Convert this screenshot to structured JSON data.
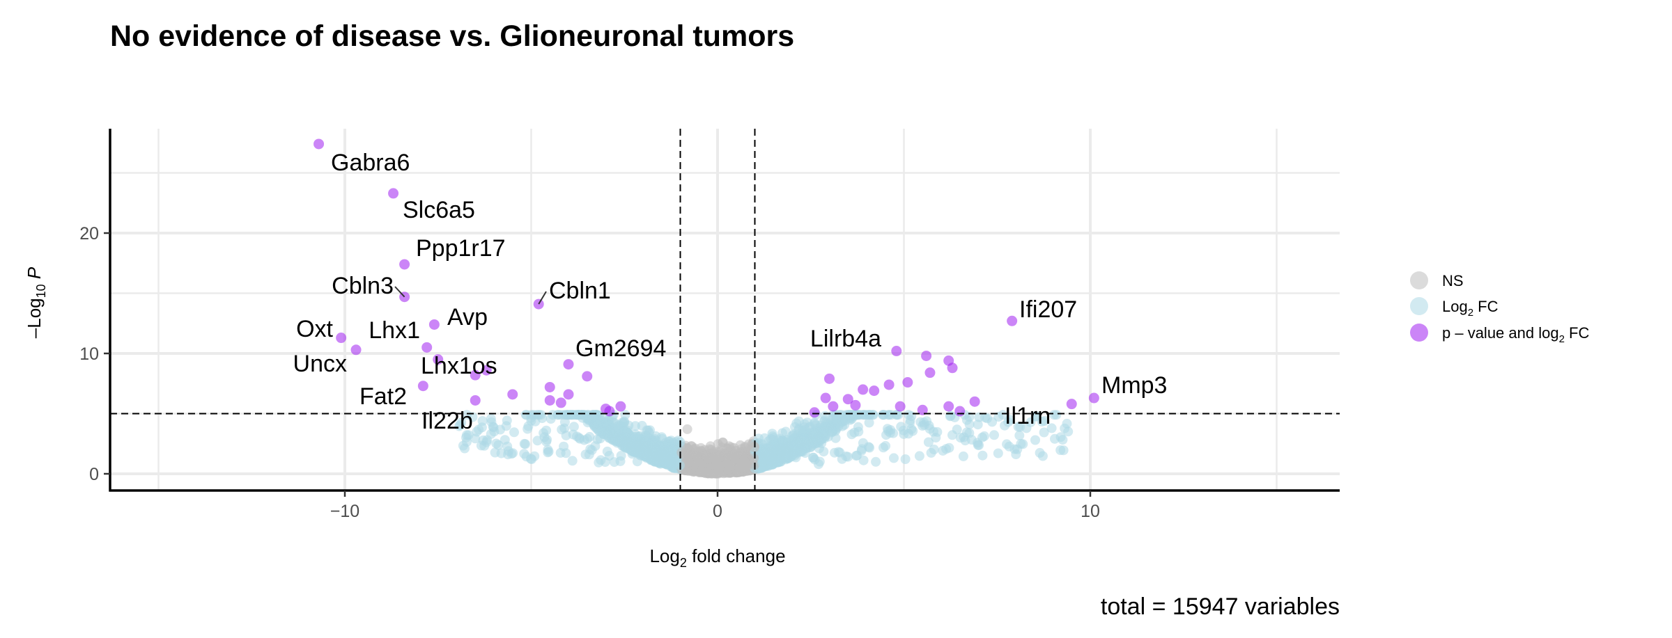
{
  "chart_data": {
    "type": "scatter",
    "title": "No evidence of disease vs. Glioneuronal tumors",
    "xlabel": "Log2 fold change",
    "ylabel": "-Log10 P",
    "caption": "total = 15947 variables",
    "xlim": [
      -15,
      15
    ],
    "ylim": [
      0,
      27.5
    ],
    "x_ticks": [
      -10,
      0,
      10
    ],
    "y_ticks": [
      0,
      10,
      20
    ],
    "fc_cutoff": 1,
    "p_cutoff_log10": 5,
    "grid": true,
    "legend_position": "right",
    "legend": [
      {
        "key": "ns",
        "label": "NS",
        "color": "#bdbdbd"
      },
      {
        "key": "fc",
        "label": "Log2 FC",
        "color": "#add8e6"
      },
      {
        "key": "both",
        "label": "p – value and log2 FC",
        "color": "#a020f0"
      }
    ],
    "series": [
      {
        "key": "both",
        "points": [
          {
            "x": -10.7,
            "y": 27.4
          },
          {
            "x": -8.7,
            "y": 23.3
          },
          {
            "x": -8.4,
            "y": 17.4
          },
          {
            "x": -8.4,
            "y": 14.7
          },
          {
            "x": -7.6,
            "y": 12.4
          },
          {
            "x": -10.1,
            "y": 11.3
          },
          {
            "x": -9.7,
            "y": 10.3
          },
          {
            "x": -7.8,
            "y": 10.5
          },
          {
            "x": -7.5,
            "y": 9.5
          },
          {
            "x": -6.5,
            "y": 8.2
          },
          {
            "x": -6.2,
            "y": 8.6
          },
          {
            "x": -7.9,
            "y": 7.3
          },
          {
            "x": -5.5,
            "y": 6.6
          },
          {
            "x": -6.5,
            "y": 6.1
          },
          {
            "x": -4.8,
            "y": 14.1
          },
          {
            "x": -4.0,
            "y": 9.1
          },
          {
            "x": -3.5,
            "y": 8.1
          },
          {
            "x": -4.5,
            "y": 7.2
          },
          {
            "x": -4.0,
            "y": 6.6
          },
          {
            "x": -4.5,
            "y": 6.1
          },
          {
            "x": -4.2,
            "y": 5.9
          },
          {
            "x": -3.0,
            "y": 5.4
          },
          {
            "x": -2.6,
            "y": 5.6
          },
          {
            "x": -2.9,
            "y": 5.2
          },
          {
            "x": 7.9,
            "y": 12.7
          },
          {
            "x": 10.1,
            "y": 6.3
          },
          {
            "x": 9.5,
            "y": 5.8
          },
          {
            "x": 4.8,
            "y": 10.2
          },
          {
            "x": 5.6,
            "y": 9.8
          },
          {
            "x": 6.2,
            "y": 9.4
          },
          {
            "x": 5.7,
            "y": 8.4
          },
          {
            "x": 6.3,
            "y": 8.8
          },
          {
            "x": 3.0,
            "y": 7.9
          },
          {
            "x": 3.9,
            "y": 7.0
          },
          {
            "x": 4.2,
            "y": 6.9
          },
          {
            "x": 4.6,
            "y": 7.4
          },
          {
            "x": 5.1,
            "y": 7.6
          },
          {
            "x": 2.9,
            "y": 6.3
          },
          {
            "x": 3.5,
            "y": 6.2
          },
          {
            "x": 2.6,
            "y": 5.1
          },
          {
            "x": 3.1,
            "y": 5.6
          },
          {
            "x": 3.7,
            "y": 5.7
          },
          {
            "x": 4.9,
            "y": 5.6
          },
          {
            "x": 5.5,
            "y": 5.3
          },
          {
            "x": 6.2,
            "y": 5.6
          },
          {
            "x": 6.9,
            "y": 6.0
          },
          {
            "x": 6.5,
            "y": 5.2
          }
        ]
      }
    ],
    "labels": [
      {
        "text": "Gabra6",
        "x": -10.7,
        "y": 27.4
      },
      {
        "text": "Slc6a5",
        "x": -8.7,
        "y": 23.3
      },
      {
        "text": "Ppp1r17",
        "x": -8.4,
        "y": 17.4
      },
      {
        "text": "Cbln3",
        "x": -8.4,
        "y": 14.7
      },
      {
        "text": "Cbln1",
        "x": -4.8,
        "y": 14.1
      },
      {
        "text": "Oxt",
        "x": -10.1,
        "y": 11.3
      },
      {
        "text": "Lhx1",
        "x": -9.7,
        "y": 10.3
      },
      {
        "text": "Avp",
        "x": -7.6,
        "y": 12.4
      },
      {
        "text": "Uncx",
        "x": -9.7,
        "y": 10.3
      },
      {
        "text": "Lhx1os",
        "x": -6.2,
        "y": 8.6
      },
      {
        "text": "Gm2694",
        "x": -4.0,
        "y": 9.1
      },
      {
        "text": "Fat2",
        "x": -7.9,
        "y": 7.3
      },
      {
        "text": "Il22b",
        "x": -6.5,
        "y": 6.1
      },
      {
        "text": "Lilrb4a",
        "x": 4.8,
        "y": 10.2
      },
      {
        "text": "Ifi207",
        "x": 7.9,
        "y": 12.7
      },
      {
        "text": "Mmp3",
        "x": 10.1,
        "y": 6.3
      },
      {
        "text": "Il1rn",
        "x": 9.5,
        "y": 5.8
      }
    ]
  }
}
